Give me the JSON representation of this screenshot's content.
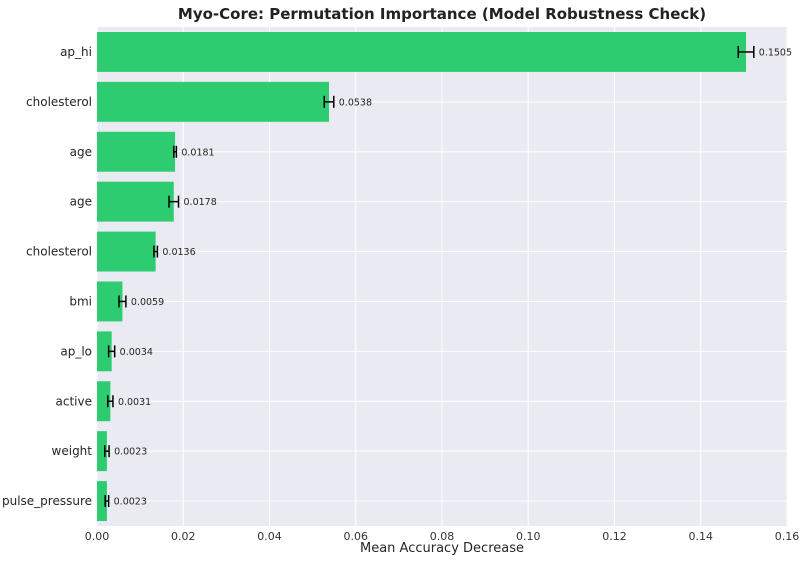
{
  "chart_data": {
    "type": "bar",
    "orientation": "horizontal",
    "title": "Myo-Core: Permutation Importance (Model Robustness Check)",
    "xlabel": "Mean Accuracy Decrease",
    "ylabel": "",
    "xlim": [
      0,
      0.16
    ],
    "xticks": [
      0.0,
      0.02,
      0.04,
      0.06,
      0.08,
      0.1,
      0.12,
      0.14,
      0.16
    ],
    "xtick_labels": [
      "0.00",
      "0.02",
      "0.04",
      "0.06",
      "0.08",
      "0.10",
      "0.12",
      "0.14",
      "0.16"
    ],
    "grid": true,
    "bar_color": "#2ecc71",
    "errorbar_color": "#000000",
    "background_color": "#eaeaf2",
    "categories": [
      "ap_hi",
      "cholesterol",
      "age",
      "age",
      "cholesterol",
      "bmi",
      "ap_lo",
      "active",
      "weight",
      "pulse_pressure"
    ],
    "values": [
      0.1505,
      0.0538,
      0.0181,
      0.0178,
      0.0136,
      0.0059,
      0.0034,
      0.0031,
      0.0023,
      0.0023
    ],
    "errors": [
      0.0018,
      0.0011,
      0.0003,
      0.0011,
      0.0004,
      0.0008,
      0.0007,
      0.0006,
      0.0005,
      0.0004
    ],
    "value_labels": [
      "0.1505",
      "0.0538",
      "0.0181",
      "0.0178",
      "0.0136",
      "0.0059",
      "0.0034",
      "0.0031",
      "0.0023",
      "0.0023"
    ]
  }
}
